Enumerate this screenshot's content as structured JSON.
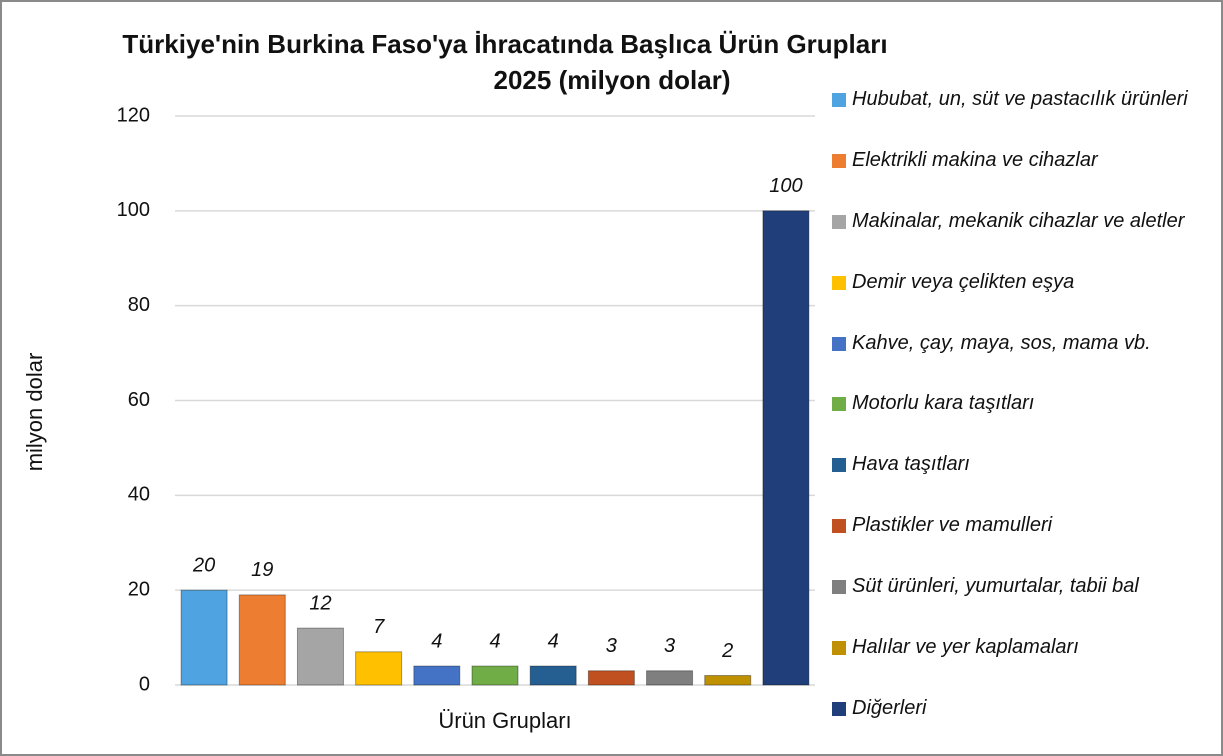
{
  "chart_data": {
    "type": "bar",
    "title": [
      "Türkiye'nin Burkina Faso'ya İhracatında Başlıca Ürün Grupları",
      "2025 (milyon dolar)"
    ],
    "xlabel": "Ürün Grupları",
    "ylabel": "milyon dolar",
    "ylim": [
      0,
      120
    ],
    "yticks": [
      0,
      20,
      40,
      60,
      80,
      100,
      120
    ],
    "grid": true,
    "legend": "right",
    "series": [
      {
        "name": "Hububat, un, süt ve pastacılık ürünleri",
        "color": "#4fa3e0",
        "values": [
          20
        ]
      },
      {
        "name": "Elektrikli makina ve cihazlar",
        "color": "#ed7d31",
        "values": [
          19
        ]
      },
      {
        "name": "Makinalar, mekanik cihazlar ve aletler",
        "color": "#a5a5a5",
        "values": [
          12
        ]
      },
      {
        "name": "Demir veya çelikten eşya",
        "color": "#ffc000",
        "values": [
          7
        ]
      },
      {
        "name": "Kahve, çay, maya, sos, mama vb.",
        "color": "#4472c4",
        "values": [
          4
        ]
      },
      {
        "name": "Motorlu kara taşıtları",
        "color": "#70ad47",
        "values": [
          4
        ]
      },
      {
        "name": "Hava taşıtları",
        "color": "#255e91",
        "values": [
          4
        ]
      },
      {
        "name": "Plastikler ve mamulleri",
        "color": "#c0501f",
        "values": [
          3
        ]
      },
      {
        "name": "Süt ürünleri, yumurtalar, tabii bal",
        "color": "#7f7f7f",
        "values": [
          3
        ]
      },
      {
        "name": "Halılar ve yer kaplamaları",
        "color": "#bf9000",
        "values": [
          2
        ]
      },
      {
        "name": "Diğerleri",
        "color": "#203f7a",
        "values": [
          100
        ]
      }
    ]
  }
}
